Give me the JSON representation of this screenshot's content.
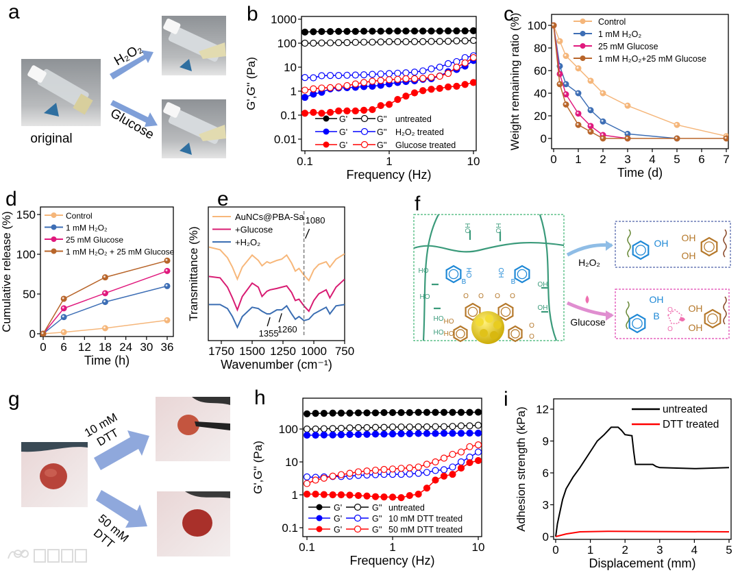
{
  "figure": {
    "panel_a": {
      "label": "a",
      "arrow_top": "H₂O₂",
      "arrow_bottom": "Glucose",
      "caption": "original"
    },
    "panel_f": {
      "label": "f",
      "reagent_top": "H₂O₂",
      "reagent_bottom": "Glucose",
      "network_labels": [
        "OH",
        "OH",
        "HO",
        "HO",
        "OH",
        "OH",
        "HO",
        "HO",
        "B",
        "B",
        "OH",
        "HO",
        "O",
        "O",
        "O",
        "O",
        "HO",
        "HO",
        "O",
        "O"
      ],
      "product_top_labels": [
        "OH",
        "OH",
        "OH"
      ],
      "product_bottom_labels": [
        "OH",
        "B",
        "O",
        "O",
        "OH",
        "OH"
      ],
      "colors": {
        "network": "#3a9a7a",
        "boronic": "#1e88d6",
        "catechol": "#b5782a",
        "gold": "#e6c619",
        "glucose": "#ef6fb0"
      }
    },
    "panel_g": {
      "label": "g",
      "arrow_top_line1": "10 mM",
      "arrow_top_line2": "DTT",
      "arrow_bottom_line1": "50 mM",
      "arrow_bottom_line2": "DTT"
    },
    "watermark": "大数跨境"
  },
  "chart_data": [
    {
      "panel": "b",
      "type": "scatter-line",
      "xscale": "log",
      "yscale": "log",
      "xlabel": "Frequency (Hz)",
      "ylabel": "G',G'' (Pa)",
      "xlim": [
        0.1,
        10
      ],
      "ylim": [
        0.01,
        1000
      ],
      "xticks": [
        0.1,
        1,
        10
      ],
      "xtick_labels": [
        "0.1",
        "1",
        "10"
      ],
      "yticks": [
        0.01,
        0.1,
        1,
        10,
        100,
        1000
      ],
      "ytick_labels": [
        "0.01",
        "0.1",
        "1",
        "10",
        "100",
        "1000"
      ],
      "x": [
        0.1,
        0.126,
        0.158,
        0.2,
        0.251,
        0.316,
        0.398,
        0.501,
        0.631,
        0.794,
        1,
        1.26,
        1.58,
        2,
        2.51,
        3.16,
        3.98,
        5.01,
        6.31,
        7.94,
        10
      ],
      "series": [
        {
          "modulus": "G'",
          "condition": "untreated",
          "color": "#000000",
          "filled": true,
          "values": [
            290,
            300,
            305,
            305,
            310,
            310,
            310,
            315,
            315,
            315,
            320,
            320,
            320,
            320,
            320,
            320,
            320,
            325,
            325,
            325,
            330
          ]
        },
        {
          "modulus": "G''",
          "condition": "untreated",
          "color": "#000000",
          "filled": false,
          "values": [
            100,
            100,
            102,
            103,
            105,
            106,
            108,
            110,
            110,
            112,
            115,
            115,
            115,
            116,
            116,
            118,
            118,
            120,
            125,
            125,
            130
          ]
        },
        {
          "modulus": "G'",
          "condition": "H₂O₂ treated",
          "color": "#0000ff",
          "filled": true,
          "values": [
            0.55,
            0.75,
            0.9,
            1.25,
            1.35,
            1.4,
            1.45,
            1.55,
            1.6,
            1.75,
            2.0,
            2.3,
            2.5,
            2.7,
            3.1,
            3.3,
            4.3,
            6.5,
            8,
            11,
            19
          ]
        },
        {
          "modulus": "G''",
          "condition": "H₂O₂ treated",
          "color": "#0000ff",
          "filled": false,
          "values": [
            3.7,
            3.6,
            4.4,
            4.5,
            4.5,
            4.6,
            4.7,
            4.8,
            5.0,
            5.2,
            5.4,
            5.6,
            5.8,
            6.2,
            7,
            8.5,
            10,
            14,
            17,
            25,
            30
          ]
        },
        {
          "modulus": "G'",
          "condition": "Glucose treated",
          "color": "#ff0000",
          "filled": true,
          "values": [
            0.12,
            0.13,
            0.12,
            0.13,
            0.15,
            0.15,
            0.15,
            0.16,
            0.17,
            0.25,
            0.28,
            0.45,
            0.62,
            0.85,
            1.05,
            1.2,
            1.3,
            1.5,
            1.6,
            1.9,
            2.3
          ]
        },
        {
          "modulus": "G''",
          "condition": "Glucose treated",
          "color": "#ff0000",
          "filled": false,
          "values": [
            1.1,
            1.25,
            1.35,
            1.4,
            1.5,
            1.7,
            2.0,
            2.3,
            2.6,
            2.8,
            3.0,
            3.1,
            3.3,
            3.3,
            3.4,
            3.8,
            4.2,
            5.5,
            10,
            15,
            25
          ]
        }
      ],
      "legend": "bottom-right"
    },
    {
      "panel": "c",
      "type": "line",
      "xlabel": "Time (d)",
      "ylabel": "Weight remaining ratio (%)",
      "xlim": [
        0,
        7
      ],
      "ylim": [
        0,
        100
      ],
      "xticks": [
        0,
        1,
        2,
        3,
        4,
        5,
        6,
        7
      ],
      "xtick_labels": [
        "0",
        "1",
        "2",
        "3",
        "4",
        "5",
        "6",
        "7"
      ],
      "yticks": [
        0,
        20,
        40,
        60,
        80,
        100
      ],
      "ytick_labels": [
        "0",
        "20",
        "40",
        "60",
        "80",
        "100"
      ],
      "x": [
        0,
        0.25,
        0.5,
        1,
        1.5,
        2,
        3,
        5,
        7
      ],
      "series": [
        {
          "name": "Control",
          "color": "#f5b67a",
          "values": [
            100,
            86,
            73,
            62,
            51,
            40,
            29,
            12,
            2
          ]
        },
        {
          "name": "1 mM H₂O₂",
          "color": "#3d6eb5",
          "values": [
            100,
            64,
            48,
            40,
            25,
            15,
            4,
            0,
            null
          ]
        },
        {
          "name": "25 mM Glucose",
          "color": "#e0197d",
          "values": [
            100,
            57,
            39,
            22,
            11,
            3,
            0,
            null,
            null
          ]
        },
        {
          "name": "1 mM H₂O₂+25 mM Glucose",
          "color": "#b8652a",
          "values": [
            100,
            48,
            30,
            12,
            6,
            0,
            0,
            0,
            0
          ]
        }
      ],
      "legend": "top-right"
    },
    {
      "panel": "d",
      "type": "line",
      "xlabel": "Time (h)",
      "ylabel": "Cumulative release (%)",
      "xlim": [
        0,
        36
      ],
      "ylim": [
        0,
        150
      ],
      "xticks": [
        0,
        6,
        12,
        18,
        24,
        30,
        36
      ],
      "xtick_labels": [
        "0",
        "6",
        "12",
        "18",
        "24",
        "30",
        "36"
      ],
      "yticks": [
        0,
        50,
        100,
        150
      ],
      "ytick_labels": [
        "0",
        "50",
        "100",
        "150"
      ],
      "x": [
        0,
        6,
        18,
        36
      ],
      "series": [
        {
          "name": "Control",
          "color": "#f5b67a",
          "values": [
            0,
            2,
            7,
            17
          ]
        },
        {
          "name": "1 mM H₂O₂",
          "color": "#3d6eb5",
          "values": [
            0,
            21,
            40,
            60
          ]
        },
        {
          "name": "25 mM Glucose",
          "color": "#e0197d",
          "values": [
            0,
            32,
            51,
            79
          ]
        },
        {
          "name": "1 mM H₂O₂ + 25 mM Glucose",
          "color": "#b8652a",
          "values": [
            0,
            44,
            71,
            92
          ]
        }
      ],
      "legend": "top-left"
    },
    {
      "panel": "e",
      "type": "line",
      "xlabel": "Wavenumber (cm⁻¹)",
      "ylabel": "Transmittance (%)",
      "xlim": [
        1850,
        750
      ],
      "ylim": [
        0,
        100
      ],
      "xticks": [
        1750,
        1500,
        1250,
        1000,
        750
      ],
      "xtick_labels": [
        "1750",
        "1500",
        "1250",
        "1000",
        "750"
      ],
      "yticks": [],
      "ytick_labels": [],
      "x": [
        1850,
        1760,
        1700,
        1660,
        1620,
        1580,
        1500,
        1450,
        1420,
        1380,
        1355,
        1300,
        1260,
        1220,
        1180,
        1150,
        1120,
        1080,
        1040,
        1000,
        960,
        900,
        870,
        820,
        750
      ],
      "series": [
        {
          "name": "AuNCs@PBA-Sa",
          "color": "#f7b77a",
          "values": [
            70,
            68,
            62,
            55,
            46,
            55,
            64,
            60,
            56,
            59,
            58,
            60,
            61,
            64,
            58,
            52,
            54,
            49,
            45,
            53,
            57,
            59,
            55,
            61,
            65
          ]
        },
        {
          "name": "+Glucose",
          "color": "#d81b72",
          "values": [
            48,
            47,
            40,
            32,
            23,
            33,
            43,
            40,
            33,
            37,
            38,
            39,
            40,
            41,
            36,
            30,
            31,
            26,
            22,
            30,
            35,
            38,
            32,
            40,
            46
          ]
        },
        {
          "name": "+H₂O₂",
          "color": "#3a6db2",
          "values": [
            27,
            27,
            24,
            18,
            10,
            18,
            25,
            24,
            22,
            20,
            20,
            23,
            23,
            26,
            20,
            16,
            18,
            15,
            16,
            20,
            22,
            25,
            20,
            26,
            27
          ]
        }
      ],
      "annotations": [
        {
          "label": "1080",
          "x": 1080
        },
        {
          "label": "1355",
          "x": 1355
        },
        {
          "label": "1260",
          "x": 1260
        }
      ],
      "legend": "top-left"
    },
    {
      "panel": "h",
      "type": "scatter-line",
      "xscale": "log",
      "yscale": "log",
      "xlabel": "Frequency (Hz)",
      "ylabel": "G',G'' (Pa)",
      "xlim": [
        0.1,
        10
      ],
      "ylim": [
        0.1,
        100
      ],
      "xticks": [
        0.1,
        1,
        10
      ],
      "xtick_labels": [
        "0.1",
        "1",
        "10"
      ],
      "yticks": [
        0.1,
        1,
        10,
        100
      ],
      "ytick_labels": [
        "0.1",
        "1",
        "10",
        "100"
      ],
      "x": [
        0.1,
        0.126,
        0.158,
        0.2,
        0.251,
        0.316,
        0.398,
        0.501,
        0.631,
        0.794,
        1,
        1.26,
        1.58,
        2,
        2.51,
        3.16,
        3.98,
        5.01,
        6.31,
        7.94,
        10
      ],
      "series": [
        {
          "modulus": "G'",
          "condition": "untreated",
          "color": "#000000",
          "filled": true,
          "values": [
            290,
            300,
            300,
            305,
            305,
            305,
            310,
            310,
            310,
            315,
            315,
            315,
            315,
            320,
            320,
            320,
            320,
            320,
            320,
            320,
            325
          ]
        },
        {
          "modulus": "G''",
          "condition": "untreated",
          "color": "#000000",
          "filled": false,
          "values": [
            100,
            100,
            102,
            103,
            105,
            108,
            110,
            110,
            112,
            112,
            115,
            115,
            115,
            116,
            116,
            118,
            118,
            120,
            125,
            125,
            130
          ]
        },
        {
          "modulus": "G'",
          "condition": "10 mM DTT treated",
          "color": "#0000ff",
          "filled": true,
          "values": [
            65,
            65,
            66,
            66,
            67,
            68,
            68,
            69,
            70,
            70,
            71,
            72,
            72,
            73,
            73,
            73,
            74,
            74,
            74,
            75,
            75
          ]
        },
        {
          "modulus": "G''",
          "condition": "10 mM DTT treated",
          "color": "#0000ff",
          "filled": false,
          "values": [
            3.5,
            3.4,
            3.5,
            3.6,
            3.6,
            3.7,
            3.9,
            4.0,
            4.1,
            4.2,
            4.2,
            4.2,
            4.3,
            4.5,
            4.8,
            5.5,
            5.8,
            7,
            10,
            14,
            20
          ]
        },
        {
          "modulus": "G'",
          "condition": "50 mM DTT treated",
          "color": "#ff0000",
          "filled": true,
          "values": [
            1.05,
            1.05,
            1.02,
            1.0,
            1.0,
            0.98,
            0.95,
            0.92,
            0.88,
            0.86,
            0.85,
            0.82,
            0.95,
            1.05,
            1.6,
            2.8,
            3.7,
            4.2,
            6.5,
            9.5,
            11
          ]
        },
        {
          "modulus": "G''",
          "condition": "50 mM DTT treated",
          "color": "#ff0000",
          "filled": false,
          "values": [
            2.2,
            2.8,
            3.2,
            3.7,
            4.1,
            4.5,
            5,
            5.3,
            5.6,
            5.9,
            6.1,
            6.4,
            6.6,
            7,
            8.5,
            10,
            13,
            17,
            20,
            29,
            33
          ]
        }
      ],
      "legend": "bottom-right"
    },
    {
      "panel": "i",
      "type": "line",
      "xlabel": "Displacement (mm)",
      "ylabel": "Adhesion strength (kPa)",
      "xlim": [
        0,
        5
      ],
      "ylim": [
        0,
        12
      ],
      "xticks": [
        0,
        1,
        2,
        3,
        4,
        5
      ],
      "xtick_labels": [
        "0",
        "1",
        "2",
        "3",
        "4",
        "5"
      ],
      "yticks": [
        0,
        3,
        6,
        9,
        12
      ],
      "ytick_labels": [
        "0",
        "3",
        "6",
        "9",
        "12"
      ],
      "series": [
        {
          "name": "untreated",
          "color": "#000000",
          "x": [
            0,
            0.05,
            0.1,
            0.2,
            0.3,
            0.5,
            0.7,
            1.0,
            1.2,
            1.4,
            1.6,
            1.8,
            1.9,
            2.0,
            2.2,
            2.25,
            2.3,
            2.8,
            2.9,
            3.0,
            4,
            5
          ],
          "values": [
            0,
            1.2,
            2,
            3.5,
            4.5,
            5.6,
            6.5,
            8,
            9,
            9.6,
            10.3,
            10.3,
            10,
            9.6,
            9.5,
            8,
            6.8,
            6.8,
            6.6,
            6.5,
            6.4,
            6.5
          ]
        },
        {
          "name": "DTT treated",
          "color": "#ff0000",
          "x": [
            0,
            0.3,
            0.7,
            1.5,
            3,
            5
          ],
          "values": [
            0,
            0.25,
            0.45,
            0.5,
            0.48,
            0.45
          ]
        }
      ],
      "legend": "top-right"
    }
  ]
}
